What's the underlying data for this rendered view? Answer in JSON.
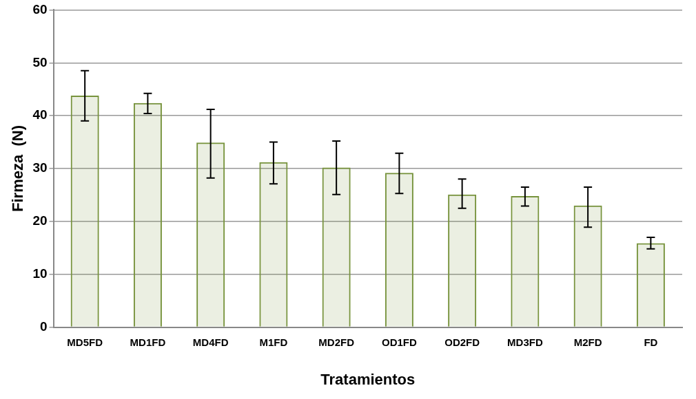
{
  "chart_data": {
    "type": "bar",
    "xlabel": "Tratamientos",
    "ylabel": "Firmeza  (N)",
    "categories": [
      "MD5FD",
      "MD1FD",
      "MD4FD",
      "M1FD",
      "MD2FD",
      "OD1FD",
      "OD2FD",
      "MD3FD",
      "M2FD",
      "FD"
    ],
    "values": [
      43.8,
      42.4,
      34.9,
      31.2,
      30.2,
      29.2,
      25.1,
      24.8,
      23.0,
      15.9
    ],
    "errors": [
      [
        39.0,
        48.5
      ],
      [
        40.4,
        44.2
      ],
      [
        28.2,
        41.2
      ],
      [
        27.1,
        35.0
      ],
      [
        25.1,
        35.2
      ],
      [
        25.3,
        32.9
      ],
      [
        22.5,
        28.0
      ],
      [
        22.9,
        26.5
      ],
      [
        18.9,
        26.5
      ],
      [
        14.8,
        17.0
      ]
    ],
    "color": "#77933c",
    "ylim": [
      0,
      60
    ],
    "yticks": [
      0,
      10,
      20,
      30,
      40,
      50,
      60
    ],
    "grid": "y"
  }
}
